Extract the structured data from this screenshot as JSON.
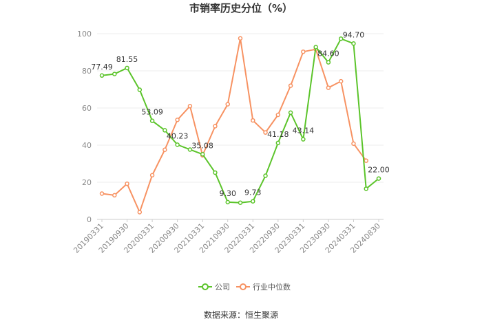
{
  "chart_data": {
    "type": "line",
    "title": "市销率历史分位（%）",
    "source": "数据来源：恒生聚源",
    "xlabel": "",
    "ylabel": "",
    "ylim": [
      0,
      100
    ],
    "yticks": [
      0,
      20,
      40,
      60,
      80,
      100
    ],
    "grid": true,
    "legend_position": "bottom",
    "x_tick_labels": [
      "20190331",
      "20190930",
      "20200331",
      "20200930",
      "20210331",
      "20210930",
      "20220331",
      "20220930",
      "20230331",
      "20230930",
      "20240331",
      "20240830"
    ],
    "x": [
      "20190331",
      "20190630",
      "20190930",
      "20191231",
      "20200331",
      "20200630",
      "20200930",
      "20201231",
      "20210331",
      "20210630",
      "20210930",
      "20211231",
      "20220331",
      "20220630",
      "20220930",
      "20221231",
      "20230331",
      "20230630",
      "20230930",
      "20231231",
      "20240331",
      "20240630",
      "20240830"
    ],
    "series": [
      {
        "name": "公司",
        "color": "#5bc42a",
        "values": [
          77.49,
          78.3,
          81.55,
          69.8,
          53.09,
          48.0,
          40.23,
          37.6,
          35.08,
          25.2,
          9.3,
          9.0,
          9.73,
          23.5,
          41.18,
          57.5,
          43.14,
          92.8,
          84.6,
          97.3,
          94.7,
          16.5,
          22.0
        ],
        "labels": [
          "77.49",
          "",
          "81.55",
          "",
          "53.09",
          "",
          "40.23",
          "",
          "35.08",
          "",
          "9.30",
          "",
          "9.73",
          "",
          "41.18",
          "",
          "43.14",
          "",
          "84.60",
          "",
          "94.70",
          "",
          "22.00"
        ]
      },
      {
        "name": "行业中位数",
        "color": "#f79262",
        "values": [
          13.9,
          13.0,
          19.2,
          3.9,
          23.8,
          37.5,
          53.6,
          61.0,
          34.5,
          50.2,
          62.0,
          97.5,
          53.3,
          46.8,
          56.3,
          72.0,
          90.3,
          91.6,
          70.9,
          74.4,
          40.8,
          31.6,
          null
        ]
      }
    ]
  }
}
